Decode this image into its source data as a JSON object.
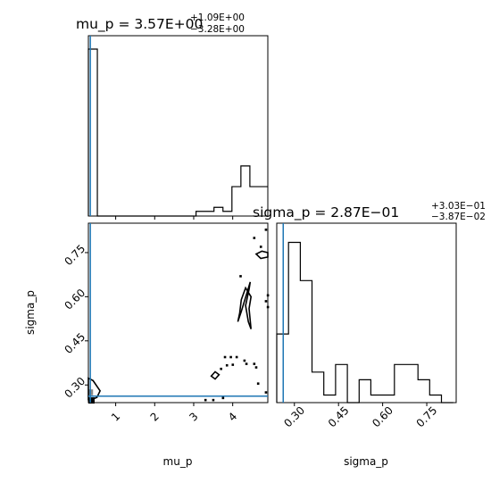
{
  "chart_data": [
    {
      "panel": "mu_p-histogram",
      "type": "histogram",
      "title": {
        "prefix": "mu_p = ",
        "value": "3.57E+00",
        "upper": "+1.09E+00",
        "lower": "−3.28E+00"
      },
      "xlim": [
        0.3,
        4.9
      ],
      "bins": [
        0.3,
        0.53,
        0.76,
        0.99,
        1.22,
        1.45,
        1.68,
        1.91,
        2.14,
        2.37,
        2.6,
        2.83,
        3.06,
        3.29,
        3.52,
        3.75,
        3.98,
        4.21,
        4.44,
        4.67,
        4.9
      ],
      "counts": [
        25,
        0,
        0,
        0,
        0,
        0,
        0,
        0,
        0,
        0,
        0,
        0,
        0.7,
        0.7,
        1.3,
        0.7,
        4.4,
        7.5,
        4.4,
        4.4
      ],
      "truth_line": 0.35,
      "truth_color": "#1f77b4"
    },
    {
      "panel": "mu_p-sigma_p-2d",
      "type": "contour",
      "xlabel": "mu_p",
      "ylabel": "sigma_p",
      "xlim": [
        0.3,
        4.9
      ],
      "ylim": [
        0.24,
        0.85
      ],
      "xticks": [
        "1",
        "2",
        "3",
        "4"
      ],
      "xtick_values": [
        1,
        2,
        3,
        4
      ],
      "yticks": [
        "0.30",
        "0.45",
        "0.60",
        "0.75"
      ],
      "ytick_values": [
        0.3,
        0.45,
        0.6,
        0.75
      ],
      "truth": {
        "x": 0.35,
        "y": 0.262
      },
      "contours": [
        [
          [
            0.3,
            0.323
          ],
          [
            0.42,
            0.315
          ],
          [
            0.6,
            0.28
          ],
          [
            0.52,
            0.258
          ],
          [
            0.38,
            0.25
          ],
          [
            0.3,
            0.25
          ]
        ],
        [
          [
            4.13,
            0.515
          ],
          [
            4.22,
            0.55
          ],
          [
            4.38,
            0.62
          ],
          [
            4.45,
            0.65
          ],
          [
            4.42,
            0.625
          ],
          [
            4.33,
            0.57
          ],
          [
            4.4,
            0.515
          ],
          [
            4.47,
            0.49
          ],
          [
            4.42,
            0.56
          ],
          [
            4.47,
            0.6
          ],
          [
            4.33,
            0.63
          ],
          [
            4.22,
            0.59
          ],
          [
            4.18,
            0.545
          ]
        ],
        [
          [
            3.45,
            0.33
          ],
          [
            3.55,
            0.345
          ],
          [
            3.65,
            0.335
          ],
          [
            3.55,
            0.32
          ]
        ],
        [
          [
            4.6,
            0.745
          ],
          [
            4.72,
            0.73
          ],
          [
            4.9,
            0.735
          ],
          [
            4.9,
            0.75
          ],
          [
            4.75,
            0.755
          ]
        ]
      ],
      "specks": [
        [
          3.8,
          0.395
        ],
        [
          3.95,
          0.395
        ],
        [
          4.1,
          0.395
        ],
        [
          4.3,
          0.383
        ],
        [
          3.85,
          0.367
        ],
        [
          4.0,
          0.369
        ],
        [
          4.35,
          0.372
        ],
        [
          4.55,
          0.372
        ],
        [
          4.6,
          0.36
        ],
        [
          3.7,
          0.355
        ],
        [
          4.65,
          0.305
        ],
        [
          4.9,
          0.565
        ],
        [
          4.85,
          0.585
        ],
        [
          4.9,
          0.605
        ],
        [
          4.55,
          0.8
        ],
        [
          4.72,
          0.77
        ],
        [
          4.85,
          0.828
        ],
        [
          4.2,
          0.67
        ],
        [
          3.5,
          0.249
        ],
        [
          3.3,
          0.249
        ],
        [
          4.85,
          0.275
        ],
        [
          3.75,
          0.256
        ]
      ],
      "density_core": {
        "x": [
          0.3,
          0.42
        ],
        "y": [
          0.265,
          0.285
        ]
      }
    },
    {
      "panel": "sigma_p-histogram",
      "type": "histogram",
      "title": {
        "prefix": "sigma_p = ",
        "value": "2.87E−01",
        "upper": "+3.03E−01",
        "lower": "−3.87E−02"
      },
      "xlabel": "sigma_p",
      "xlim": [
        0.24,
        0.85
      ],
      "xticks": [
        "0.30",
        "0.45",
        "0.60",
        "0.75"
      ],
      "xtick_values": [
        0.3,
        0.45,
        0.6,
        0.75
      ],
      "bins": [
        0.24,
        0.26,
        0.28,
        0.3,
        0.32,
        0.34,
        0.36,
        0.38,
        0.4,
        0.42,
        0.44,
        0.46,
        0.48,
        0.5,
        0.52,
        0.54,
        0.56,
        0.58,
        0.6,
        0.62,
        0.64,
        0.66,
        0.68,
        0.7,
        0.72,
        0.74,
        0.76,
        0.78,
        0.8,
        0.82,
        0.84
      ],
      "counts": [
        9,
        9,
        21,
        21,
        16,
        16,
        4,
        4,
        1,
        1,
        5,
        5,
        0,
        0,
        3,
        3,
        1,
        1,
        1,
        1,
        5,
        5,
        5,
        5,
        3,
        3,
        1,
        1,
        0,
        0
      ],
      "truth_line": 0.262,
      "truth_color": "#1f77b4"
    }
  ]
}
